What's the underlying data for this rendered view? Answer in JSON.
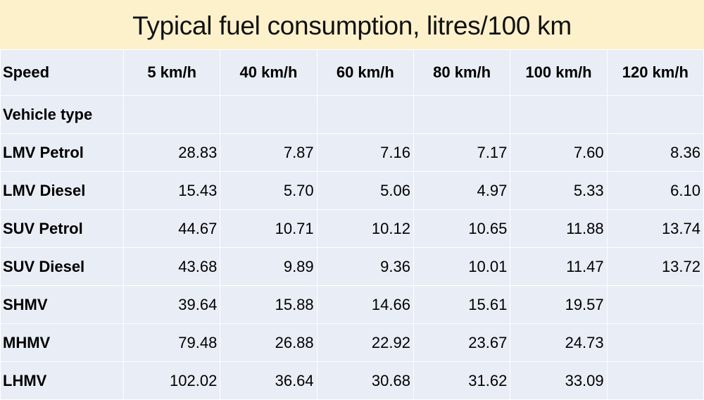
{
  "title": "Typical fuel consumption, litres/100 km",
  "table": {
    "header": [
      "Speed",
      "5 km/h",
      "40 km/h",
      "60 km/h",
      "80 km/h",
      "100 km/h",
      "120 km/h"
    ],
    "subheader": "Vehicle type",
    "rows": [
      {
        "label": "LMV Petrol",
        "values": [
          "28.83",
          "7.87",
          "7.16",
          "7.17",
          "7.60",
          "8.36"
        ]
      },
      {
        "label": "LMV Diesel",
        "values": [
          "15.43",
          "5.70",
          "5.06",
          "4.97",
          "5.33",
          "6.10"
        ]
      },
      {
        "label": "SUV Petrol",
        "values": [
          "44.67",
          "10.71",
          "10.12",
          "10.65",
          "11.88",
          "13.74"
        ]
      },
      {
        "label": "SUV Diesel",
        "values": [
          "43.68",
          "9.89",
          "9.36",
          "10.01",
          "11.47",
          "13.72"
        ]
      },
      {
        "label": "SHMV",
        "values": [
          "39.64",
          "15.88",
          "14.66",
          "15.61",
          "19.57",
          null
        ]
      },
      {
        "label": "MHMV",
        "values": [
          "79.48",
          "26.88",
          "22.92",
          "23.67",
          "24.73",
          null
        ]
      },
      {
        "label": "LHMV",
        "values": [
          "102.02",
          "36.64",
          "30.68",
          "31.62",
          "33.09",
          null
        ]
      }
    ]
  }
}
